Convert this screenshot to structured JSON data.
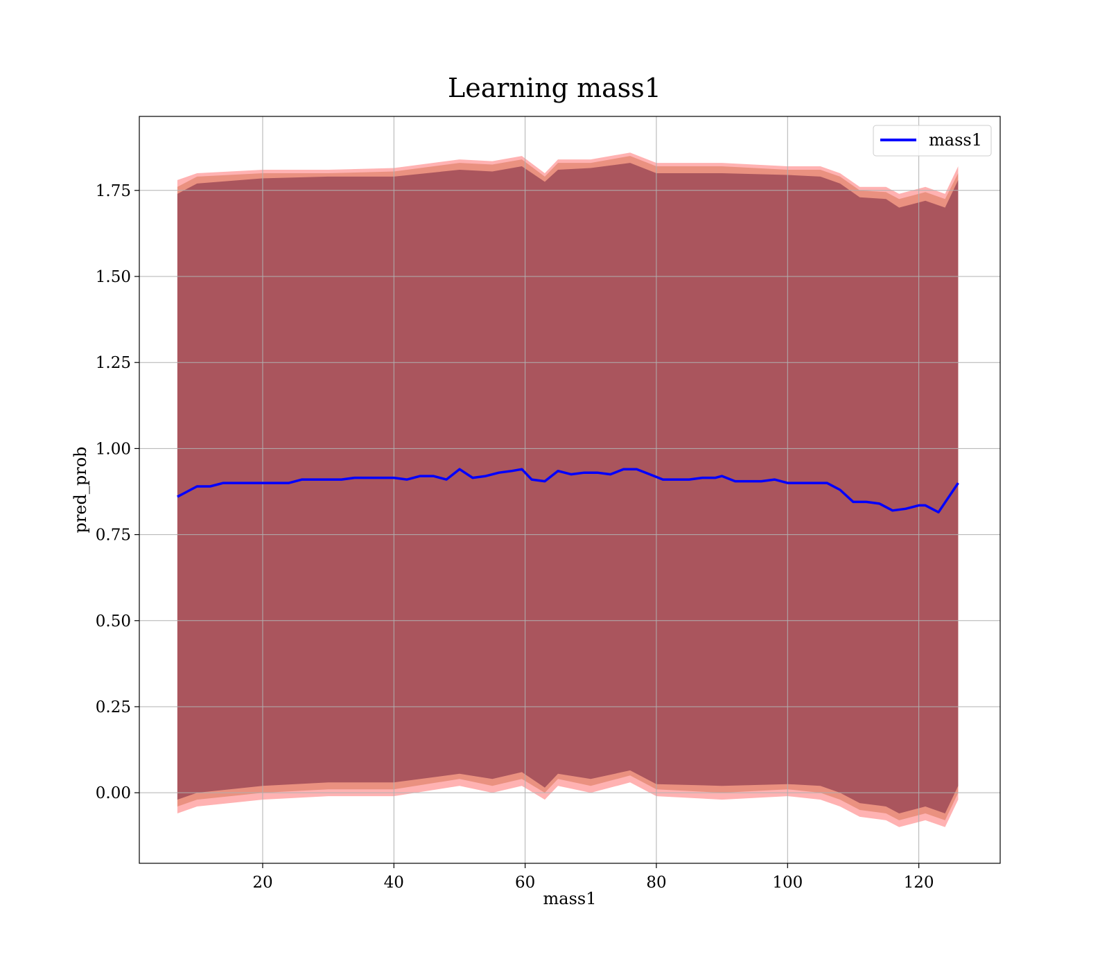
{
  "chart_data": {
    "type": "line",
    "title": "Learning mass1",
    "xlabel": "mass1",
    "ylabel": "pred_prob",
    "xlim": [
      1.2,
      132.4
    ],
    "ylim": [
      -0.205,
      1.965
    ],
    "x_ticks": [
      20,
      40,
      60,
      80,
      100,
      120
    ],
    "y_ticks": [
      0.0,
      0.25,
      0.5,
      0.75,
      1.0,
      1.25,
      1.5,
      1.75
    ],
    "x_tick_labels": [
      "20",
      "40",
      "60",
      "80",
      "100",
      "120"
    ],
    "y_tick_labels": [
      "0.00",
      "0.25",
      "0.50",
      "0.75",
      "1.00",
      "1.25",
      "1.50",
      "1.75"
    ],
    "grid": true,
    "legend_position": "top-right",
    "series": [
      {
        "name": "mass1",
        "color": "#0000ff",
        "x": [
          7,
          8,
          9,
          10,
          12,
          14,
          16,
          18,
          20,
          22,
          24,
          26,
          28,
          30,
          32,
          34,
          36,
          38,
          40,
          42,
          44,
          46,
          48,
          50,
          52,
          54,
          56,
          58,
          59.5,
          61,
          63,
          65,
          67,
          69,
          71,
          73,
          75,
          77,
          79,
          81,
          83,
          85,
          87,
          89,
          90,
          92,
          94,
          96,
          98,
          100,
          102,
          104,
          106,
          108,
          110,
          112,
          114,
          116,
          118,
          120,
          121,
          123,
          126
        ],
        "y": [
          0.86,
          0.87,
          0.88,
          0.89,
          0.89,
          0.9,
          0.9,
          0.9,
          0.9,
          0.9,
          0.9,
          0.91,
          0.91,
          0.91,
          0.91,
          0.915,
          0.915,
          0.915,
          0.915,
          0.91,
          0.92,
          0.92,
          0.91,
          0.94,
          0.915,
          0.92,
          0.93,
          0.935,
          0.94,
          0.91,
          0.905,
          0.935,
          0.925,
          0.93,
          0.93,
          0.925,
          0.94,
          0.94,
          0.925,
          0.91,
          0.91,
          0.91,
          0.915,
          0.915,
          0.92,
          0.905,
          0.905,
          0.905,
          0.91,
          0.9,
          0.9,
          0.9,
          0.9,
          0.88,
          0.845,
          0.845,
          0.84,
          0.82,
          0.825,
          0.835,
          0.835,
          0.815,
          0.9
        ]
      }
    ],
    "bands": [
      {
        "color": "#ff0000",
        "opacity": 0.3,
        "x": [
          7,
          10,
          20,
          30,
          40,
          50,
          55,
          59.5,
          63,
          65,
          70,
          76,
          80,
          90,
          100,
          105,
          108,
          111,
          115,
          117,
          121,
          124,
          126
        ],
        "upper": [
          1.78,
          1.8,
          1.81,
          1.81,
          1.815,
          1.84,
          1.835,
          1.85,
          1.8,
          1.84,
          1.84,
          1.86,
          1.83,
          1.83,
          1.82,
          1.82,
          1.8,
          1.76,
          1.76,
          1.74,
          1.76,
          1.74,
          1.82
        ],
        "lower": [
          -0.06,
          -0.04,
          -0.02,
          -0.01,
          -0.01,
          0.02,
          0.0,
          0.02,
          -0.02,
          0.02,
          0.0,
          0.03,
          -0.01,
          -0.02,
          -0.01,
          -0.02,
          -0.04,
          -0.07,
          -0.08,
          -0.1,
          -0.08,
          -0.1,
          -0.02
        ]
      },
      {
        "color": "#b43c00",
        "opacity": 0.28,
        "x": [
          7,
          10,
          20,
          30,
          40,
          50,
          55,
          59.5,
          63,
          65,
          70,
          76,
          80,
          90,
          100,
          105,
          108,
          111,
          115,
          117,
          121,
          124,
          126
        ],
        "upper": [
          1.76,
          1.79,
          1.8,
          1.8,
          1.805,
          1.83,
          1.825,
          1.84,
          1.79,
          1.83,
          1.83,
          1.85,
          1.82,
          1.82,
          1.81,
          1.81,
          1.79,
          1.75,
          1.745,
          1.725,
          1.745,
          1.725,
          1.8
        ],
        "lower": [
          -0.04,
          -0.02,
          0.0,
          0.01,
          0.01,
          0.04,
          0.02,
          0.04,
          0.0,
          0.04,
          0.02,
          0.05,
          0.01,
          0.0,
          0.01,
          0.0,
          -0.02,
          -0.05,
          -0.06,
          -0.08,
          -0.06,
          -0.08,
          0.0
        ]
      },
      {
        "color": "#6a1a3a",
        "opacity": 0.5,
        "x": [
          7,
          10,
          20,
          30,
          40,
          50,
          55,
          59.5,
          63,
          65,
          70,
          76,
          80,
          90,
          100,
          105,
          108,
          111,
          115,
          117,
          121,
          124,
          126
        ],
        "upper": [
          1.74,
          1.77,
          1.785,
          1.79,
          1.79,
          1.81,
          1.805,
          1.82,
          1.775,
          1.81,
          1.815,
          1.83,
          1.8,
          1.8,
          1.795,
          1.79,
          1.77,
          1.73,
          1.725,
          1.7,
          1.72,
          1.7,
          1.78
        ],
        "lower": [
          -0.02,
          0.0,
          0.02,
          0.03,
          0.03,
          0.055,
          0.04,
          0.06,
          0.015,
          0.055,
          0.04,
          0.065,
          0.025,
          0.02,
          0.025,
          0.02,
          0.0,
          -0.03,
          -0.04,
          -0.06,
          -0.04,
          -0.06,
          0.02
        ]
      }
    ]
  }
}
